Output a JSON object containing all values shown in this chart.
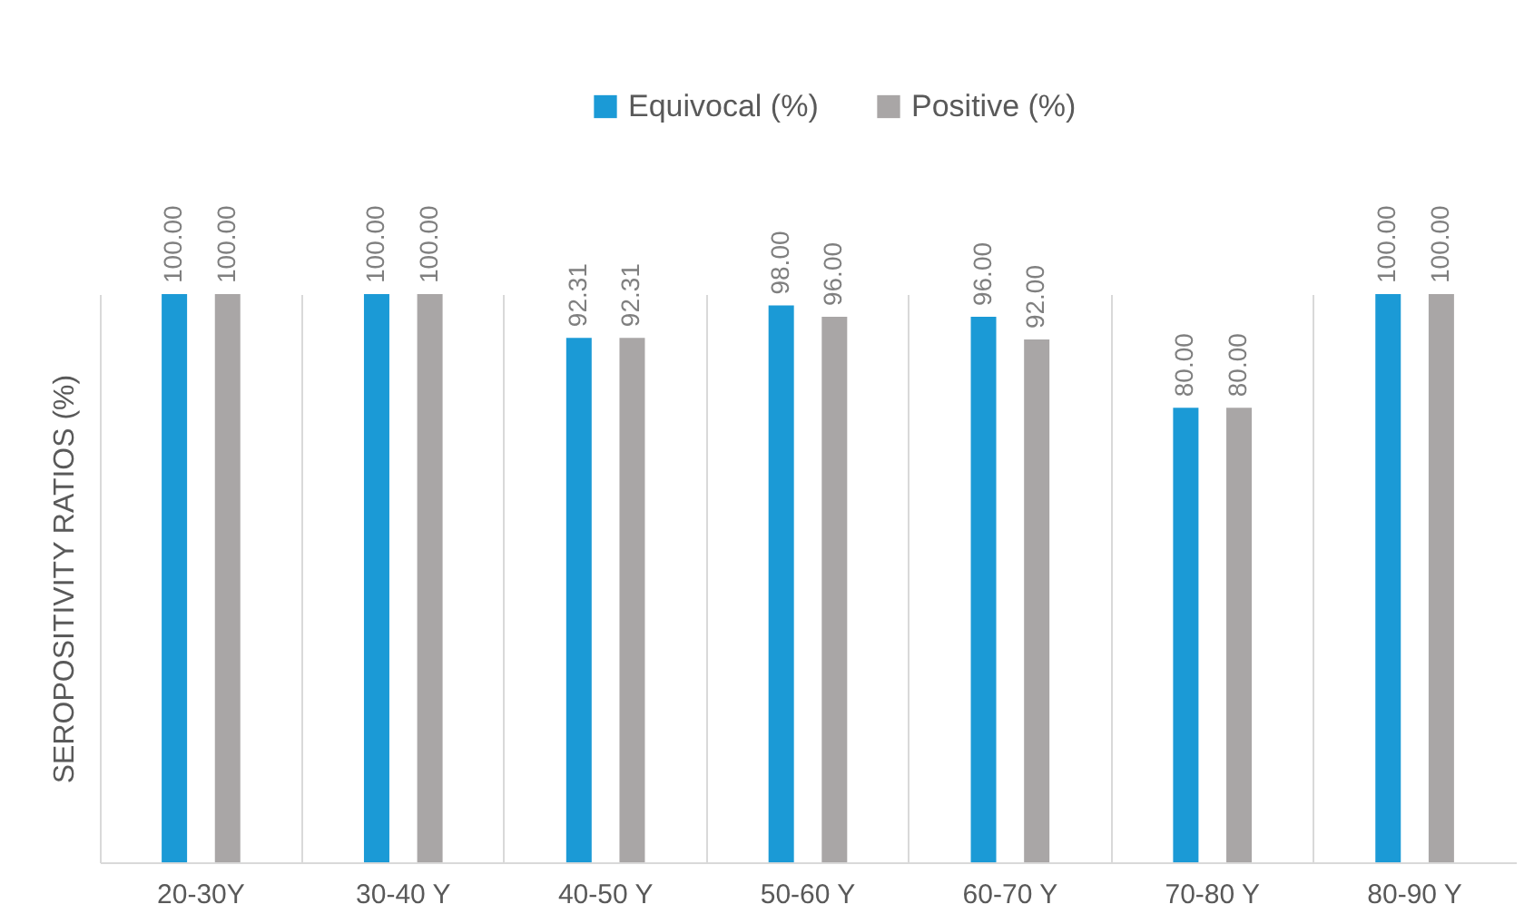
{
  "chart_data": {
    "type": "bar",
    "ylabel": "SEROPOSITIVITY RATIOS (%)",
    "categories": [
      "20-30Y",
      "30-40 Y",
      "40-50 Y",
      "50-60 Y",
      "60-70 Y",
      "70-80 Y",
      "80-90 Y"
    ],
    "series": [
      {
        "name": "Equivocal (%)",
        "color": "#1b9ad6",
        "values": [
          100,
          100,
          92.31,
          98,
          96,
          80,
          100
        ],
        "value_labels": [
          "100.00",
          "100.00",
          "92.31",
          "98.00",
          "96.00",
          "80.00",
          "100.00"
        ]
      },
      {
        "name": "Positive (%)",
        "color": "#a9a6a6",
        "values": [
          100,
          100,
          92.31,
          96,
          92,
          80,
          100
        ],
        "value_labels": [
          "100.00",
          "100.00",
          "92.31",
          "96.00",
          "92.00",
          "80.00",
          "100.00"
        ]
      }
    ],
    "grid": "x",
    "legend": "top"
  }
}
